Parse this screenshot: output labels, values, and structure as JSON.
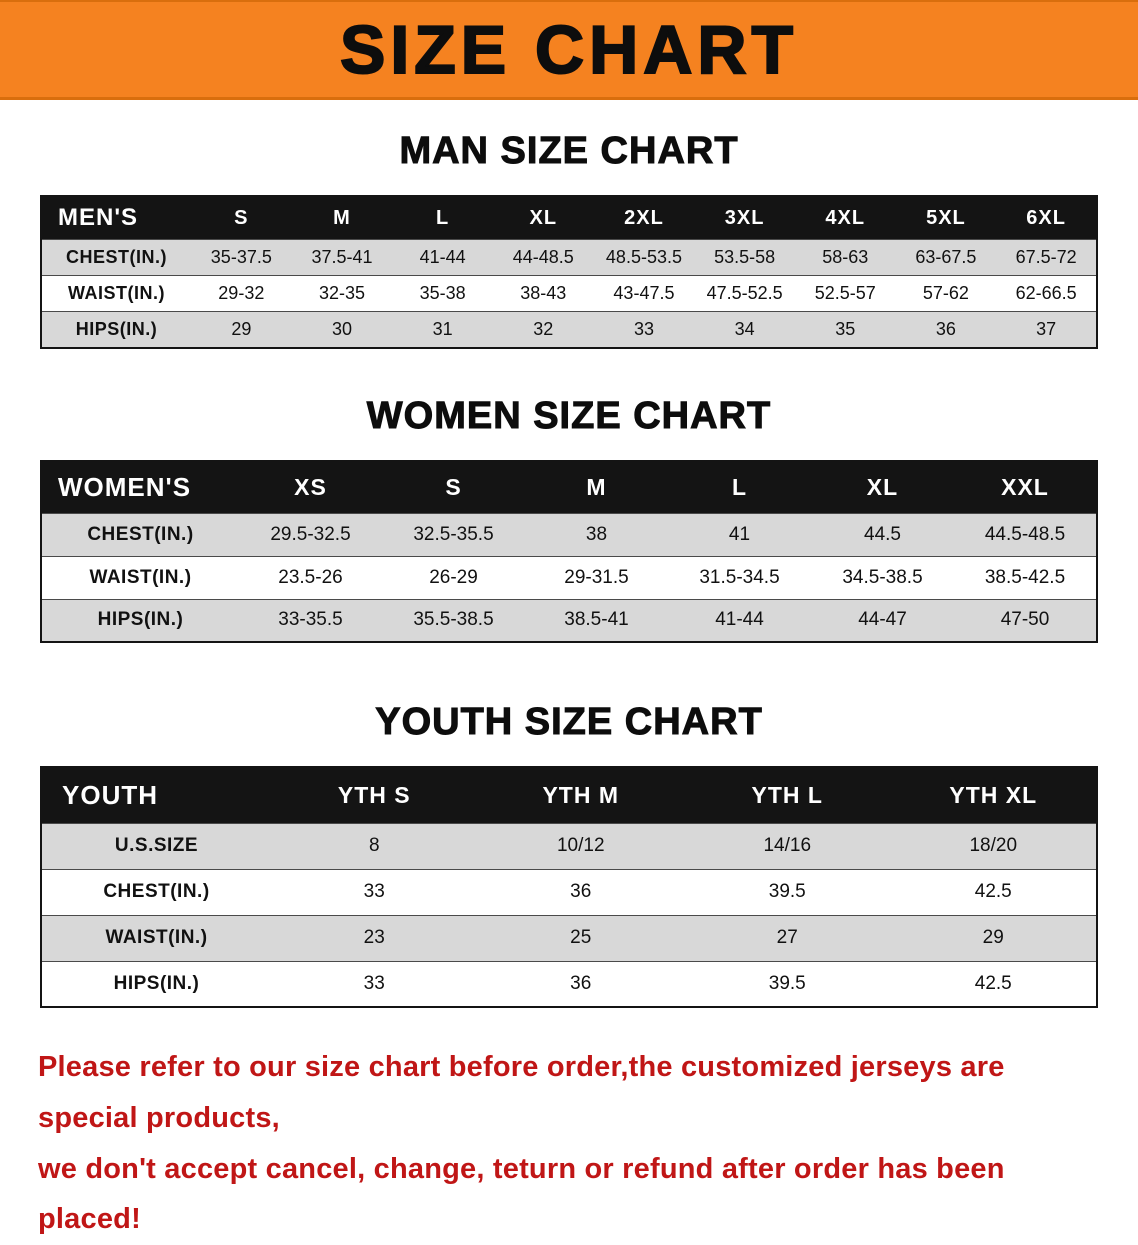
{
  "banner": {
    "title": "SIZE CHART",
    "bg": "#F58220"
  },
  "sections": [
    {
      "id": "men",
      "heading": "MAN SIZE CHART",
      "table": {
        "header": [
          "MEN'S",
          "S",
          "M",
          "L",
          "XL",
          "2XL",
          "3XL",
          "4XL",
          "5XL",
          "6XL"
        ],
        "rows": [
          {
            "label": "CHEST(IN.)",
            "values": [
              "35-37.5",
              "37.5-41",
              "41-44",
              "44-48.5",
              "48.5-53.5",
              "53.5-58",
              "58-63",
              "63-67.5",
              "67.5-72"
            ]
          },
          {
            "label": "WAIST(IN.)",
            "values": [
              "29-32",
              "32-35",
              "35-38",
              "38-43",
              "43-47.5",
              "47.5-52.5",
              "52.5-57",
              "57-62",
              "62-66.5"
            ]
          },
          {
            "label": "HIPS(IN.)",
            "values": [
              "29",
              "30",
              "31",
              "32",
              "33",
              "34",
              "35",
              "36",
              "37"
            ]
          }
        ]
      }
    },
    {
      "id": "women",
      "heading": "WOMEN SIZE CHART",
      "table": {
        "header": [
          "WOMEN'S",
          "XS",
          "S",
          "M",
          "L",
          "XL",
          "XXL"
        ],
        "rows": [
          {
            "label": "CHEST(IN.)",
            "values": [
              "29.5-32.5",
              "32.5-35.5",
              "38",
              "41",
              "44.5",
              "44.5-48.5"
            ]
          },
          {
            "label": "WAIST(IN.)",
            "values": [
              "23.5-26",
              "26-29",
              "29-31.5",
              "31.5-34.5",
              "34.5-38.5",
              "38.5-42.5"
            ]
          },
          {
            "label": "HIPS(IN.)",
            "values": [
              "33-35.5",
              "35.5-38.5",
              "38.5-41",
              "41-44",
              "44-47",
              "47-50"
            ]
          }
        ]
      }
    },
    {
      "id": "youth",
      "heading": "YOUTH SIZE CHART",
      "table": {
        "header": [
          "YOUTH",
          "YTH S",
          "YTH M",
          "YTH L",
          "YTH XL"
        ],
        "rows": [
          {
            "label": "U.S.SIZE",
            "values": [
              "8",
              "10/12",
              "14/16",
              "18/20"
            ]
          },
          {
            "label": "CHEST(IN.)",
            "values": [
              "33",
              "36",
              "39.5",
              "42.5"
            ]
          },
          {
            "label": "WAIST(IN.)",
            "values": [
              "23",
              "25",
              "27",
              "29"
            ]
          },
          {
            "label": "HIPS(IN.)",
            "values": [
              "33",
              "36",
              "39.5",
              "42.5"
            ]
          }
        ]
      }
    }
  ],
  "footer": {
    "color": "#c01616",
    "line1": "Please refer to our size chart before order,the customized jerseys are special products,",
    "line2": "we don't accept cancel, change, teturn or refund after order has been placed!"
  }
}
